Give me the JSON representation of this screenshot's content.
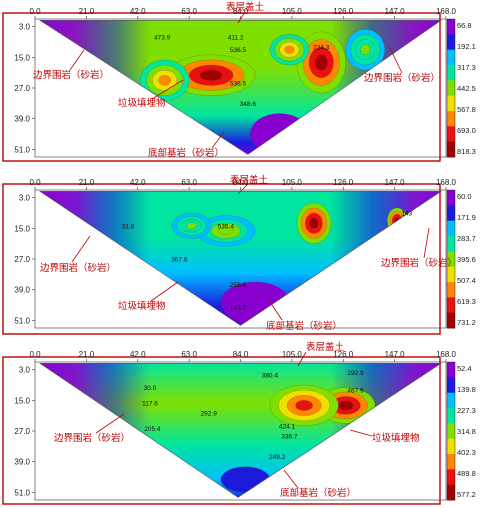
{
  "chart_data": [
    {
      "type": "heatmap",
      "title": "",
      "xlabel": "",
      "ylabel": "",
      "xlim": [
        0,
        168
      ],
      "ylim": [
        3,
        51
      ],
      "x_ticks": [
        "0.0",
        "21.0",
        "42.0",
        "63.0",
        "84.0",
        "105.0",
        "126.0",
        "147.0",
        "168.0"
      ],
      "y_ticks": [
        "3.0",
        "15.0",
        "27.0",
        "39.0",
        "51.0"
      ],
      "colorbar_ticks": [
        "66.8",
        "192.1",
        "317.3",
        "442.5",
        "567.8",
        "693.0",
        "818.3"
      ],
      "contour_labels": [
        {
          "x": 52,
          "y": 8,
          "text": "473.9"
        },
        {
          "x": 82,
          "y": 8,
          "text": "411.2"
        },
        {
          "x": 83,
          "y": 13,
          "text": "536.5"
        },
        {
          "x": 117,
          "y": 12,
          "text": "724.3"
        },
        {
          "x": 83,
          "y": 26,
          "text": "536.5"
        },
        {
          "x": 87,
          "y": 34,
          "text": "348.6"
        }
      ],
      "anomalies": [
        {
          "x": 72,
          "y": 22,
          "value": 818,
          "r": 18,
          "ry": 8
        },
        {
          "x": 117,
          "y": 17,
          "value": 818,
          "r": 10,
          "ry": 12
        },
        {
          "x": 53,
          "y": 24,
          "value": 600,
          "r": 10,
          "ry": 8
        },
        {
          "x": 135,
          "y": 12,
          "value": 430,
          "r": 8,
          "ry": 8
        },
        {
          "x": 104,
          "y": 12,
          "value": 600,
          "r": 8,
          "ry": 6
        },
        {
          "x": 100,
          "y": 45,
          "value": 60,
          "r": 12,
          "ry": 8
        }
      ],
      "annotations": [
        "表层盖土",
        "边界围岩（砂岩）",
        "边界围岩（砂岩）",
        "垃圾填埋物",
        "底部基岩（砂岩）"
      ]
    },
    {
      "type": "heatmap",
      "title": "",
      "xlabel": "",
      "ylabel": "",
      "xlim": [
        0,
        168
      ],
      "ylim": [
        3,
        51
      ],
      "x_ticks": [
        "0.0",
        "21.0",
        "42.0",
        "63.0",
        "84.0",
        "105.0",
        "126.0",
        "147.0",
        "168.0"
      ],
      "y_ticks": [
        "3.0",
        "15.0",
        "27.0",
        "39.0",
        "51.0"
      ],
      "colorbar_ticks": [
        "60.0",
        "171.9",
        "283.7",
        "395.6",
        "507.4",
        "619.3",
        "731.2"
      ],
      "contour_labels": [
        {
          "x": 78,
          "y": 15,
          "text": "535.4"
        },
        {
          "x": 59,
          "y": 28,
          "text": "367.6"
        },
        {
          "x": 83,
          "y": 38,
          "text": "255.6"
        },
        {
          "x": 83,
          "y": 47,
          "text": "143.7"
        },
        {
          "x": 152,
          "y": 10,
          "text": "143"
        },
        {
          "x": 38,
          "y": 15,
          "text": "31.8"
        }
      ],
      "anomalies": [
        {
          "x": 114,
          "y": 13,
          "value": 731,
          "r": 7,
          "ry": 8
        },
        {
          "x": 148,
          "y": 12,
          "value": 731,
          "r": 4,
          "ry": 5
        },
        {
          "x": 78,
          "y": 16,
          "value": 420,
          "r": 12,
          "ry": 6
        },
        {
          "x": 64,
          "y": 14,
          "value": 380,
          "r": 8,
          "ry": 5
        },
        {
          "x": 90,
          "y": 44,
          "value": 80,
          "r": 14,
          "ry": 8
        }
      ],
      "annotations": [
        "表层盖土",
        "边界围岩（砂岩）",
        "边界围岩（砂岩）",
        "垃圾填埋物",
        "底部基岩（砂岩）"
      ]
    },
    {
      "type": "heatmap",
      "title": "",
      "xlabel": "",
      "ylabel": "",
      "xlim": [
        0,
        168
      ],
      "ylim": [
        3,
        51
      ],
      "x_ticks": [
        "0.0",
        "21.0",
        "42.0",
        "63.0",
        "84.0",
        "105.0",
        "126.0",
        "147.0",
        "168.0"
      ],
      "y_ticks": [
        "3.0",
        "15.0",
        "27.0",
        "39.0",
        "51.0"
      ],
      "colorbar_ticks": [
        "52.4",
        "139.8",
        "227.3",
        "314.8",
        "402.3",
        "489.8",
        "577.2"
      ],
      "contour_labels": [
        {
          "x": 47,
          "y": 11,
          "text": "30.0"
        },
        {
          "x": 47,
          "y": 17,
          "text": "117.6"
        },
        {
          "x": 48,
          "y": 27,
          "text": "205.4"
        },
        {
          "x": 71,
          "y": 21,
          "text": "292.9"
        },
        {
          "x": 96,
          "y": 6,
          "text": "380.4"
        },
        {
          "x": 131,
          "y": 5,
          "text": "292.9"
        },
        {
          "x": 131,
          "y": 12,
          "text": "467.9"
        },
        {
          "x": 103,
          "y": 26,
          "text": "424.1"
        },
        {
          "x": 104,
          "y": 30,
          "text": "336.7"
        },
        {
          "x": 99,
          "y": 38,
          "text": "249.2"
        }
      ],
      "anomalies": [
        {
          "x": 127,
          "y": 17,
          "value": 577,
          "r": 12,
          "ry": 7
        },
        {
          "x": 110,
          "y": 17,
          "value": 480,
          "r": 14,
          "ry": 8
        },
        {
          "x": 86,
          "y": 46,
          "value": 150,
          "r": 10,
          "ry": 5
        }
      ],
      "annotations": [
        "表层盖土",
        "边界围岩（砂岩）",
        "垃圾填埋物",
        "底部基岩（砂岩）"
      ]
    }
  ],
  "colors": {
    "annotation": "#c00000",
    "frame": "#c00000",
    "scale": [
      "#8a00d4",
      "#1a1ae0",
      "#00bfff",
      "#00e5a0",
      "#7fe000",
      "#f0e000",
      "#ff8800",
      "#e81010",
      "#a00000"
    ]
  }
}
